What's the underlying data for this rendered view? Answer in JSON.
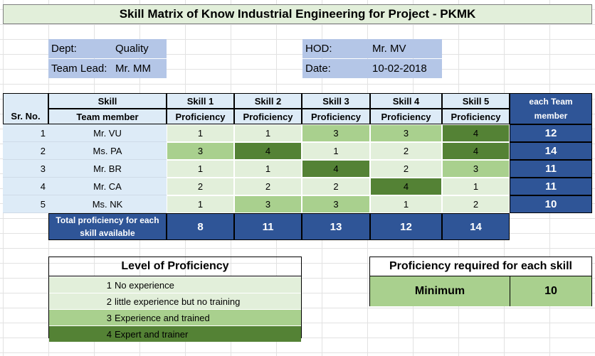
{
  "title": "Skill Matrix of Know Industrial Engineering for Project - PKMK",
  "info": {
    "dept_label": "Dept:",
    "dept_value": "Quality",
    "lead_label": "Team Lead:",
    "lead_value": "Mr. MM",
    "hod_label": "HOD:",
    "hod_value": "Mr. MV",
    "date_label": "Date:",
    "date_value": "10-02-2018"
  },
  "table": {
    "srno_header": "Sr. No.",
    "skill_header": "Skill",
    "member_header": "Team member",
    "skills": [
      "Skill 1",
      "Skill 2",
      "Skill 3",
      "Skill 4",
      "Skill 5"
    ],
    "proficiency_label": "Proficiency",
    "each_team_member_label": "each Team member",
    "rows": [
      {
        "sr": "1",
        "name": "Mr. VU",
        "scores": [
          1,
          1,
          3,
          3,
          4
        ],
        "total": 12
      },
      {
        "sr": "2",
        "name": "Ms. PA",
        "scores": [
          3,
          4,
          1,
          2,
          4
        ],
        "total": 14
      },
      {
        "sr": "3",
        "name": "Mr. BR",
        "scores": [
          1,
          1,
          4,
          2,
          3
        ],
        "total": 11
      },
      {
        "sr": "4",
        "name": "Mr. CA",
        "scores": [
          2,
          2,
          2,
          4,
          1
        ],
        "total": 11
      },
      {
        "sr": "5",
        "name": "Ms. NK",
        "scores": [
          1,
          3,
          3,
          1,
          2
        ],
        "total": 10
      }
    ],
    "total_label": "Total proficiency for each skill available",
    "skill_totals": [
      8,
      11,
      13,
      12,
      14
    ]
  },
  "legend": {
    "title": "Level of Proficiency",
    "levels": [
      {
        "num": "1",
        "text": "No experience"
      },
      {
        "num": "2",
        "text": "little experience but no training"
      },
      {
        "num": "3",
        "text": "Experience and trained"
      },
      {
        "num": "4",
        "text": "Expert and trainer"
      }
    ]
  },
  "required": {
    "title": "Proficiency required for each skill",
    "label": "Minimum",
    "value": "10"
  },
  "colors": {
    "level1": "#e2efda",
    "level2": "#e2efda",
    "level3": "#a9d08e",
    "level4": "#548235",
    "header_blue": "#2f5597",
    "light_blue": "#ddebf7",
    "info_blue": "#b4c6e7"
  }
}
